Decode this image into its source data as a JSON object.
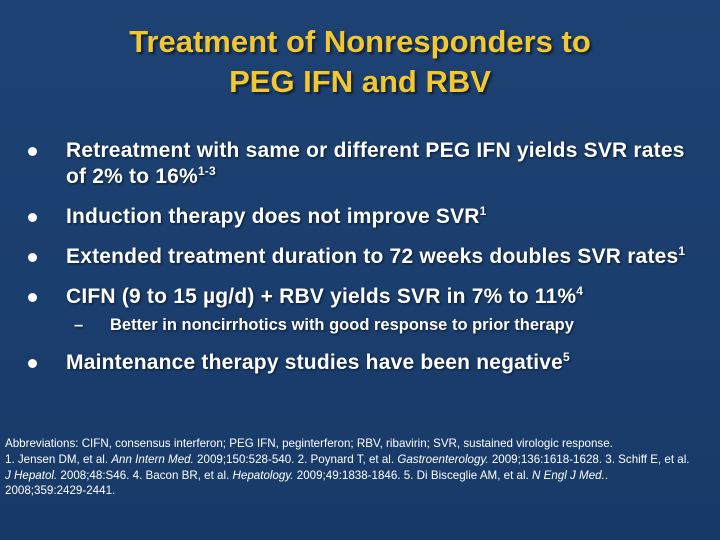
{
  "title": {
    "line1": "Treatment of Nonresponders to",
    "line2": "PEG IFN and RBV"
  },
  "bullets": [
    {
      "text": "Retreatment with same or different PEG IFN yields SVR rates of 2% to 16%",
      "sup": "1-3"
    },
    {
      "text": "Induction therapy does not improve SVR",
      "sup": "1"
    },
    {
      "text": "Extended treatment duration to 72 weeks doubles SVR rates",
      "sup": "1"
    },
    {
      "text": "CIFN (9 to 15 µg/d) + RBV yields SVR in 7% to 11%",
      "sup": "4"
    },
    {
      "text": "Maintenance therapy studies have been negative",
      "sup": "5"
    }
  ],
  "subbullet": {
    "dash": "–",
    "text": "Better in noncirrhotics with good response to prior therapy"
  },
  "footnote": {
    "abbrev": "Abbreviations: CIFN, consensus interferon; PEG IFN, peginterferon; RBV, ribavirin; SVR, sustained virologic response.",
    "refs": [
      {
        "pre": "1. Jensen DM, et al. ",
        "journal": "Ann Intern Med.",
        "post": " 2009;150:528-540. "
      },
      {
        "pre": "2. Poynard T, et al. ",
        "journal": "Gastroenterology.",
        "post": " 2009;136:1618-1628. "
      },
      {
        "pre": "3. Schiff E, et al. ",
        "journal": "J Hepatol.",
        "post": " 2008;48:S46. "
      },
      {
        "pre": "4. Bacon BR, et al. ",
        "journal": "Hepatology.",
        "post": " 2009;49:1838-1846. "
      },
      {
        "pre": "5. Di Bisceglie AM, et al. ",
        "journal": "N Engl J Med.",
        "post": ". 2008;359:2429-2441."
      }
    ]
  },
  "colors": {
    "background": "#1b3d6e",
    "title": "#f2c832",
    "text": "#ffffff"
  }
}
